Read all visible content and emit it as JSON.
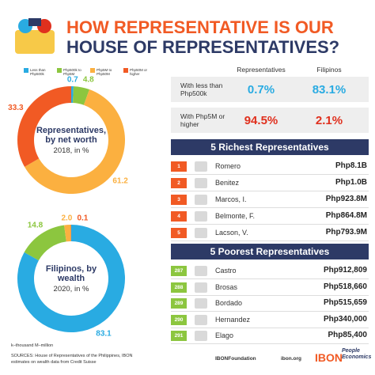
{
  "header": {
    "title_lines": [
      "HOW REPRESENTATIVE IS OUR",
      "HOUSE OF REPRESENTATIVES?"
    ]
  },
  "legend": {
    "labels": [
      "Less than Php500k",
      "Php500k to Php5M",
      "Php5M to Php50M",
      "Php50M or higher"
    ],
    "colors": [
      "#29abe2",
      "#8cc63f",
      "#fbb040",
      "#f15a24"
    ]
  },
  "chart_data": [
    {
      "type": "pie",
      "title": "Representatives, by net worth",
      "subtitle": "2018, in %",
      "values": [
        0.7,
        4.8,
        61.2,
        33.3
      ]
    },
    {
      "type": "pie",
      "title": "Filipinos, by wealth",
      "subtitle": "2020, in %",
      "values": [
        83.1,
        14.8,
        2.0,
        0.1
      ],
      "value_labels": [
        "83.1",
        "14.8",
        "2.0",
        "0.1"
      ]
    }
  ],
  "comparison": {
    "columns": [
      "Representatives",
      "Filipinos"
    ],
    "rows": [
      [
        "With less than Php500k",
        "0.7%",
        "83.1%"
      ],
      [
        "With Php5M or higher",
        "94.5%",
        "2.1%"
      ]
    ]
  },
  "richest": {
    "title": "5 Richest Representatives",
    "rows": [
      [
        "1",
        "Romero",
        "Php8.1B"
      ],
      [
        "2",
        "Benitez",
        "Php1.0B"
      ],
      [
        "3",
        "Marcos, I.",
        "Php923.8M"
      ],
      [
        "4",
        "Belmonte, F.",
        "Php864.8M"
      ],
      [
        "5",
        "Lacson, V.",
        "Php793.9M"
      ]
    ]
  },
  "poorest": {
    "title": "5 Poorest Representatives",
    "rows": [
      [
        "287",
        "Castro",
        "Php912,809"
      ],
      [
        "288",
        "Brosas",
        "Php518,660"
      ],
      [
        "289",
        "Bordado",
        "Php515,659"
      ],
      [
        "290",
        "Hernandez",
        "Php340,000"
      ],
      [
        "291",
        "Elago",
        "Php85,400"
      ]
    ]
  },
  "footer": {
    "units": "k–thousand   M–million",
    "source": "SOURCES: House of Representatives of the Philippines, IBON estimates on wealth data from Credit Suisse",
    "social": "IBONFoundation",
    "website": "ibon.org",
    "brand": "IBON",
    "tagline": "People Economics"
  }
}
